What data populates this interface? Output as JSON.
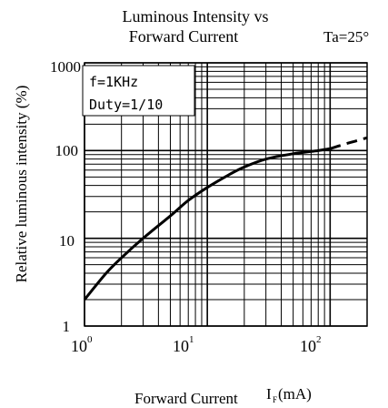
{
  "chart_data": {
    "type": "line",
    "title_line1": "Luminous Intensity vs",
    "title_line2": "Forward Current",
    "condition": "Ta=25°",
    "xlabel": "Forward Current",
    "xlabel_symbol": "I",
    "xlabel_subscript": "F",
    "xlabel_unit": "(mA)",
    "ylabel": "Relative luminous intensity (%)",
    "x_scale": "log",
    "y_scale": "log",
    "xlim": [
      1,
      200
    ],
    "ylim": [
      1,
      1000
    ],
    "x_ticks": [
      {
        "value": 1,
        "base": "10",
        "exp": "0"
      },
      {
        "value": 10,
        "base": "10",
        "exp": "1"
      },
      {
        "value": 100,
        "base": "10",
        "exp": "2"
      }
    ],
    "y_ticks": [
      {
        "value": 1,
        "label": "1"
      },
      {
        "value": 10,
        "label": "10"
      },
      {
        "value": 100,
        "label": "100"
      },
      {
        "value": 1000,
        "label": "1000"
      }
    ],
    "annotation_lines": [
      "f=1KHz",
      "Duty=1/10"
    ],
    "grid": true,
    "series": [
      {
        "style": "solid",
        "color": "#000000",
        "x": [
          1,
          1.5,
          2,
          3,
          5,
          7,
          10,
          15,
          20,
          30,
          50,
          80,
          100
        ],
        "y": [
          2,
          4,
          6,
          10,
          18,
          27,
          38,
          53,
          65,
          80,
          92,
          100,
          105
        ]
      },
      {
        "style": "dashed",
        "color": "#000000",
        "x": [
          100,
          130,
          160,
          200
        ],
        "y": [
          105,
          118,
          128,
          140
        ]
      }
    ]
  }
}
